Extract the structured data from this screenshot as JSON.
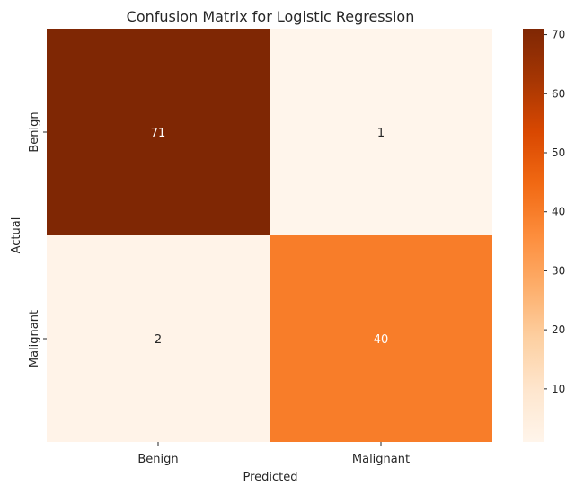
{
  "chart_data": {
    "type": "heatmap",
    "title": "Confusion Matrix for Logistic Regression",
    "xlabel": "Predicted",
    "ylabel": "Actual",
    "x_categories": [
      "Benign",
      "Malignant"
    ],
    "y_categories": [
      "Benign",
      "Malignant"
    ],
    "values": [
      [
        71,
        1
      ],
      [
        2,
        40
      ]
    ],
    "colormap": "Oranges",
    "colorbar": {
      "ticks": [
        10,
        20,
        30,
        40,
        50,
        60,
        70
      ],
      "range": [
        1,
        71
      ],
      "stops": [
        "#fff5eb",
        "#fee6ce",
        "#fdd0a2",
        "#fdae6b",
        "#fd8d3c",
        "#f16913",
        "#d94801",
        "#a63603",
        "#7f2704"
      ]
    },
    "annotation_colors": {
      "light": "#ffffff",
      "dark": "#262626"
    },
    "grid": false
  }
}
